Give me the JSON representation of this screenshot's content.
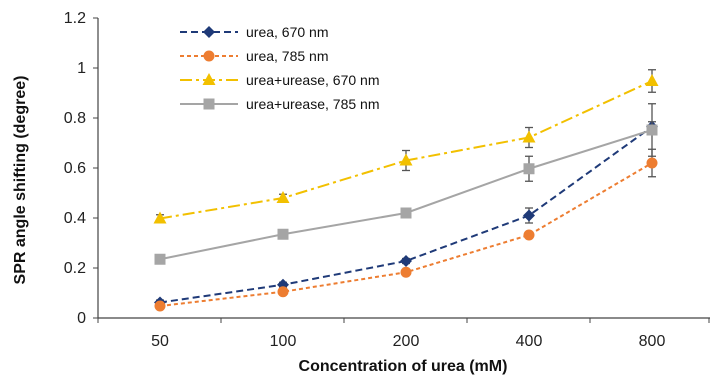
{
  "chart_data": {
    "type": "line",
    "categories": [
      "50",
      "100",
      "200",
      "400",
      "800"
    ],
    "xlabel": "Concentration of urea (mM)",
    "ylabel": "SPR angle shifting (degree)",
    "ylim": [
      0,
      1.2
    ],
    "yticks": [
      "0",
      "0.2",
      "0.4",
      "0.6",
      "0.8",
      "1",
      "1.2"
    ],
    "grid": false,
    "legend_position": "top-left",
    "series": [
      {
        "name": "urea, 670 nm",
        "color": "#1f3a78",
        "marker": "diamond",
        "dash": "dashed",
        "values": [
          0.062,
          0.133,
          0.228,
          0.41,
          0.765
        ],
        "errors": [
          0.01,
          0.01,
          0.01,
          0.03,
          0.02
        ]
      },
      {
        "name": "urea, 785 nm",
        "color": "#ed7d31",
        "marker": "circle",
        "dash": "short-dashed",
        "values": [
          0.048,
          0.105,
          0.183,
          0.332,
          0.62
        ],
        "errors": [
          0.01,
          0.01,
          0.01,
          0.01,
          0.055
        ]
      },
      {
        "name": "urea+urease, 670 nm",
        "color": "#f2c000",
        "marker": "triangle",
        "dash": "dash-dot",
        "values": [
          0.398,
          0.48,
          0.63,
          0.722,
          0.948
        ],
        "errors": [
          0.015,
          0.015,
          0.04,
          0.04,
          0.045
        ]
      },
      {
        "name": "urea+urease, 785 nm",
        "color": "#a5a5a5",
        "marker": "square",
        "dash": "solid",
        "values": [
          0.235,
          0.335,
          0.42,
          0.597,
          0.752
        ],
        "errors": [
          0.01,
          0.01,
          0.01,
          0.05,
          0.105
        ]
      }
    ]
  }
}
